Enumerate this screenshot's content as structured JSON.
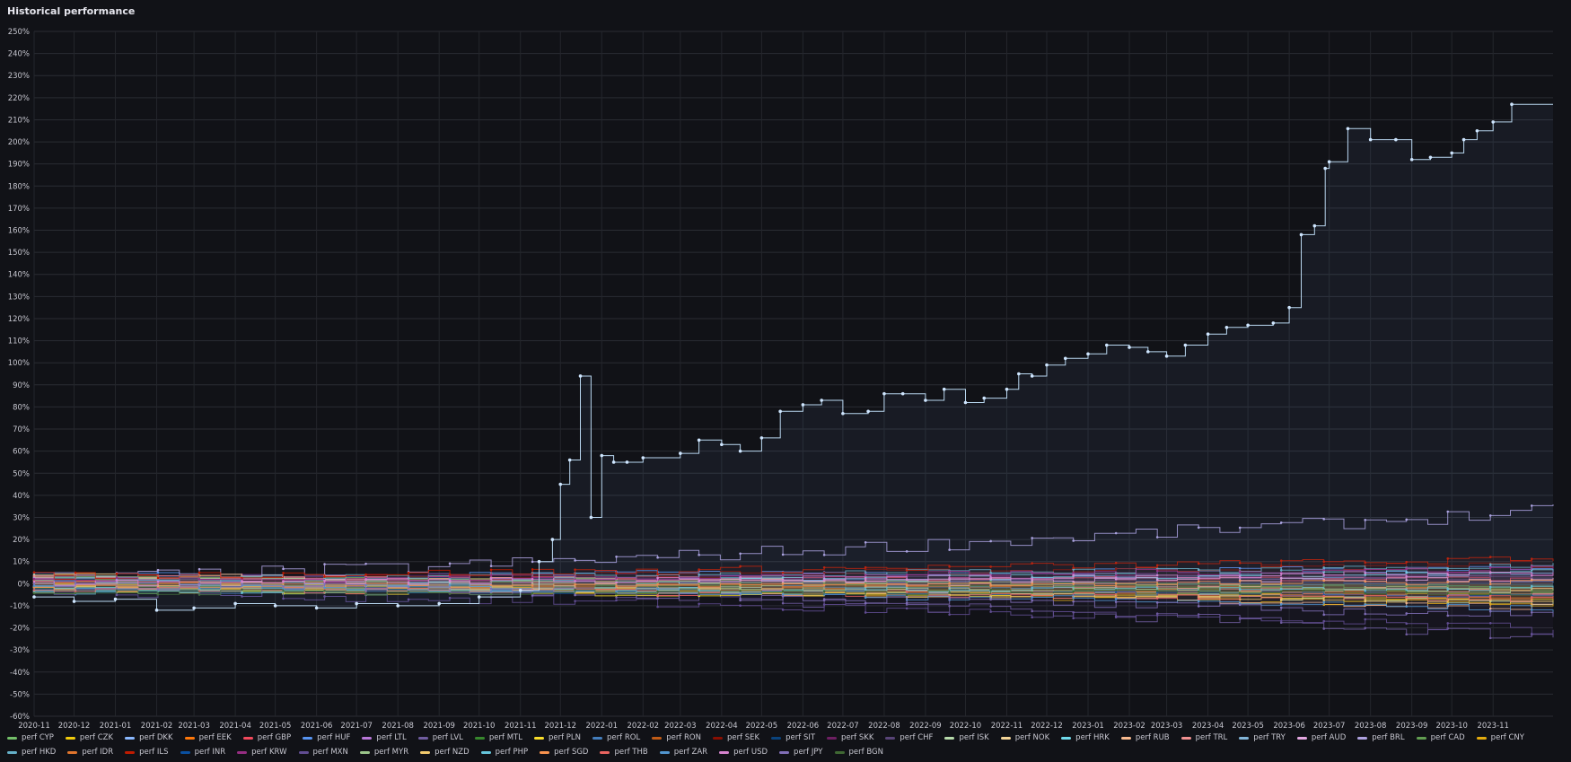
{
  "panel": {
    "title": "Historical performance"
  },
  "chart_data": {
    "type": "line",
    "title": "Historical performance",
    "xlabel": "",
    "ylabel": "",
    "y_unit": "%",
    "ylim": [
      -60,
      250
    ],
    "grid": true,
    "legend_placement": "bottom",
    "step": true,
    "y_ticks": [
      "250%",
      "240%",
      "230%",
      "220%",
      "210%",
      "200%",
      "190%",
      "180%",
      "170%",
      "160%",
      "150%",
      "140%",
      "130%",
      "120%",
      "110%",
      "100%",
      "90%",
      "80%",
      "70%",
      "60%",
      "50%",
      "40%",
      "30%",
      "20%",
      "10%",
      "0%",
      "-10%",
      "-20%",
      "-30%",
      "-40%",
      "-50%",
      "-60%"
    ],
    "x_ticks": [
      "2020-11",
      "2020-12",
      "2021-01",
      "2021-02",
      "2021-03",
      "2021-04",
      "2021-05",
      "2021-06",
      "2021-07",
      "2021-08",
      "2021-09",
      "2021-10",
      "2021-11",
      "2021-12",
      "2022-01",
      "2022-02",
      "2022-03",
      "2022-04",
      "2022-05",
      "2022-06",
      "2022-07",
      "2022-08",
      "2022-09",
      "2022-10",
      "2022-11",
      "2022-12",
      "2023-01",
      "2023-02",
      "2023-03",
      "2023-04",
      "2023-05",
      "2023-06",
      "2023-07",
      "2023-08",
      "2023-09",
      "2023-10",
      "2023-11"
    ],
    "series": [
      {
        "name": "perf CYP",
        "color": "#73bf69",
        "end": -4
      },
      {
        "name": "perf CZK",
        "color": "#f2cc0c",
        "end": -6
      },
      {
        "name": "perf DKK",
        "color": "#8ab8ff",
        "end": 5
      },
      {
        "name": "perf EEK",
        "color": "#ff780a",
        "end": -3
      },
      {
        "name": "perf GBP",
        "color": "#f2495c",
        "end": 2
      },
      {
        "name": "perf HUF",
        "color": "#5794f2",
        "end": 7
      },
      {
        "name": "perf LTL",
        "color": "#b877d9",
        "end": -5
      },
      {
        "name": "perf LVL",
        "color": "#705da0",
        "end": -24
      },
      {
        "name": "perf MTL",
        "color": "#37872d",
        "end": -2
      },
      {
        "name": "perf PLN",
        "color": "#fade2a",
        "end": -8
      },
      {
        "name": "perf ROL",
        "color": "#447ebc",
        "end": 1
      },
      {
        "name": "perf RON",
        "color": "#c15c17",
        "end": -7
      },
      {
        "name": "perf SEK",
        "color": "#890f02",
        "end": 9
      },
      {
        "name": "perf SIT",
        "color": "#0a437c",
        "end": -1
      },
      {
        "name": "perf SKK",
        "color": "#6d1f62",
        "end": 4
      },
      {
        "name": "perf CHF",
        "color": "#584477",
        "end": 3
      },
      {
        "name": "perf ISK",
        "color": "#b7dbab",
        "end": -9
      },
      {
        "name": "perf NOK",
        "color": "#f4d598",
        "end": -3
      },
      {
        "name": "perf HRK",
        "color": "#70dbed",
        "end": 6
      },
      {
        "name": "perf RUB",
        "color": "#f9ba8f",
        "end": -11
      },
      {
        "name": "perf TRL",
        "color": "#f29191",
        "end": -4
      },
      {
        "name": "perf TRY",
        "color": "#82b5d8",
        "end": 217
      },
      {
        "name": "perf AUD",
        "color": "#e5a8e2",
        "end": 2
      },
      {
        "name": "perf BRL",
        "color": "#aea2e0",
        "end": 33
      },
      {
        "name": "perf CAD",
        "color": "#629e51",
        "end": -2
      },
      {
        "name": "perf CNY",
        "color": "#e5ac0e",
        "end": -10
      },
      {
        "name": "perf HKD",
        "color": "#64b0c8",
        "end": 8
      },
      {
        "name": "perf IDR",
        "color": "#e0752d",
        "end": -6
      },
      {
        "name": "perf ILS",
        "color": "#bf1b00",
        "end": 11
      },
      {
        "name": "perf INR",
        "color": "#0a50a1",
        "end": -5
      },
      {
        "name": "perf KRW",
        "color": "#962d82",
        "end": 7
      },
      {
        "name": "perf MXN",
        "color": "#614d93",
        "end": -21
      },
      {
        "name": "perf MYR",
        "color": "#9ac48a",
        "end": -3
      },
      {
        "name": "perf NZD",
        "color": "#f2c96d",
        "end": -8
      },
      {
        "name": "perf PHP",
        "color": "#65c5db",
        "end": -2
      },
      {
        "name": "perf SGD",
        "color": "#f9934e",
        "end": 1
      },
      {
        "name": "perf THB",
        "color": "#ea6460",
        "end": -7
      },
      {
        "name": "perf ZAR",
        "color": "#5195ce",
        "end": -12
      },
      {
        "name": "perf USD",
        "color": "#d683ce",
        "end": 5
      },
      {
        "name": "perf JPY",
        "color": "#806eb7",
        "end": -15
      },
      {
        "name": "perf BGN",
        "color": "#3f6833",
        "end": -4
      }
    ],
    "highlight_series": {
      "name": "perf TRY",
      "points": [
        [
          "2020-11",
          -6
        ],
        [
          "2020-12",
          -8
        ],
        [
          "2021-01",
          -7
        ],
        [
          "2021-02",
          -12
        ],
        [
          "2021-03",
          -11
        ],
        [
          "2021-04",
          -9
        ],
        [
          "2021-05",
          -10
        ],
        [
          "2021-06",
          -11
        ],
        [
          "2021-07",
          -9
        ],
        [
          "2021-08",
          -10
        ],
        [
          "2021-09",
          -9
        ],
        [
          "2021-10",
          -6
        ],
        [
          "2021-11",
          -3
        ],
        [
          "2021-11-15",
          10
        ],
        [
          "2021-11-25",
          20
        ],
        [
          "2021-12-01",
          45
        ],
        [
          "2021-12-08",
          56
        ],
        [
          "2021-12-16",
          94
        ],
        [
          "2021-12-24",
          30
        ],
        [
          "2022-01-01",
          58
        ],
        [
          "2022-01-10",
          55
        ],
        [
          "2022-01-20",
          55
        ],
        [
          "2022-02",
          57
        ],
        [
          "2022-03",
          59
        ],
        [
          "2022-03-15",
          65
        ],
        [
          "2022-04",
          63
        ],
        [
          "2022-04-15",
          60
        ],
        [
          "2022-05",
          66
        ],
        [
          "2022-05-15",
          78
        ],
        [
          "2022-06",
          81
        ],
        [
          "2022-06-15",
          83
        ],
        [
          "2022-07",
          77
        ],
        [
          "2022-07-20",
          78
        ],
        [
          "2022-08",
          86
        ],
        [
          "2022-08-15",
          86
        ],
        [
          "2022-09",
          83
        ],
        [
          "2022-09-15",
          88
        ],
        [
          "2022-10",
          82
        ],
        [
          "2022-10-15",
          84
        ],
        [
          "2022-11",
          88
        ],
        [
          "2022-11-10",
          95
        ],
        [
          "2022-11-20",
          94
        ],
        [
          "2022-12",
          99
        ],
        [
          "2022-12-15",
          102
        ],
        [
          "2023-01",
          104
        ],
        [
          "2023-01-15",
          108
        ],
        [
          "2023-02",
          107
        ],
        [
          "2023-02-15",
          105
        ],
        [
          "2023-03",
          103
        ],
        [
          "2023-03-15",
          108
        ],
        [
          "2023-04",
          113
        ],
        [
          "2023-04-15",
          116
        ],
        [
          "2023-05",
          117
        ],
        [
          "2023-05-20",
          118
        ],
        [
          "2023-06",
          125
        ],
        [
          "2023-06-10",
          158
        ],
        [
          "2023-06-20",
          162
        ],
        [
          "2023-06-28",
          188
        ],
        [
          "2023-07",
          191
        ],
        [
          "2023-07-15",
          206
        ],
        [
          "2023-08",
          201
        ],
        [
          "2023-08-20",
          201
        ],
        [
          "2023-09",
          192
        ],
        [
          "2023-09-15",
          193
        ],
        [
          "2023-10",
          195
        ],
        [
          "2023-10-10",
          201
        ],
        [
          "2023-10-20",
          205
        ],
        [
          "2023-11",
          209
        ],
        [
          "2023-11-15",
          217
        ]
      ]
    }
  }
}
